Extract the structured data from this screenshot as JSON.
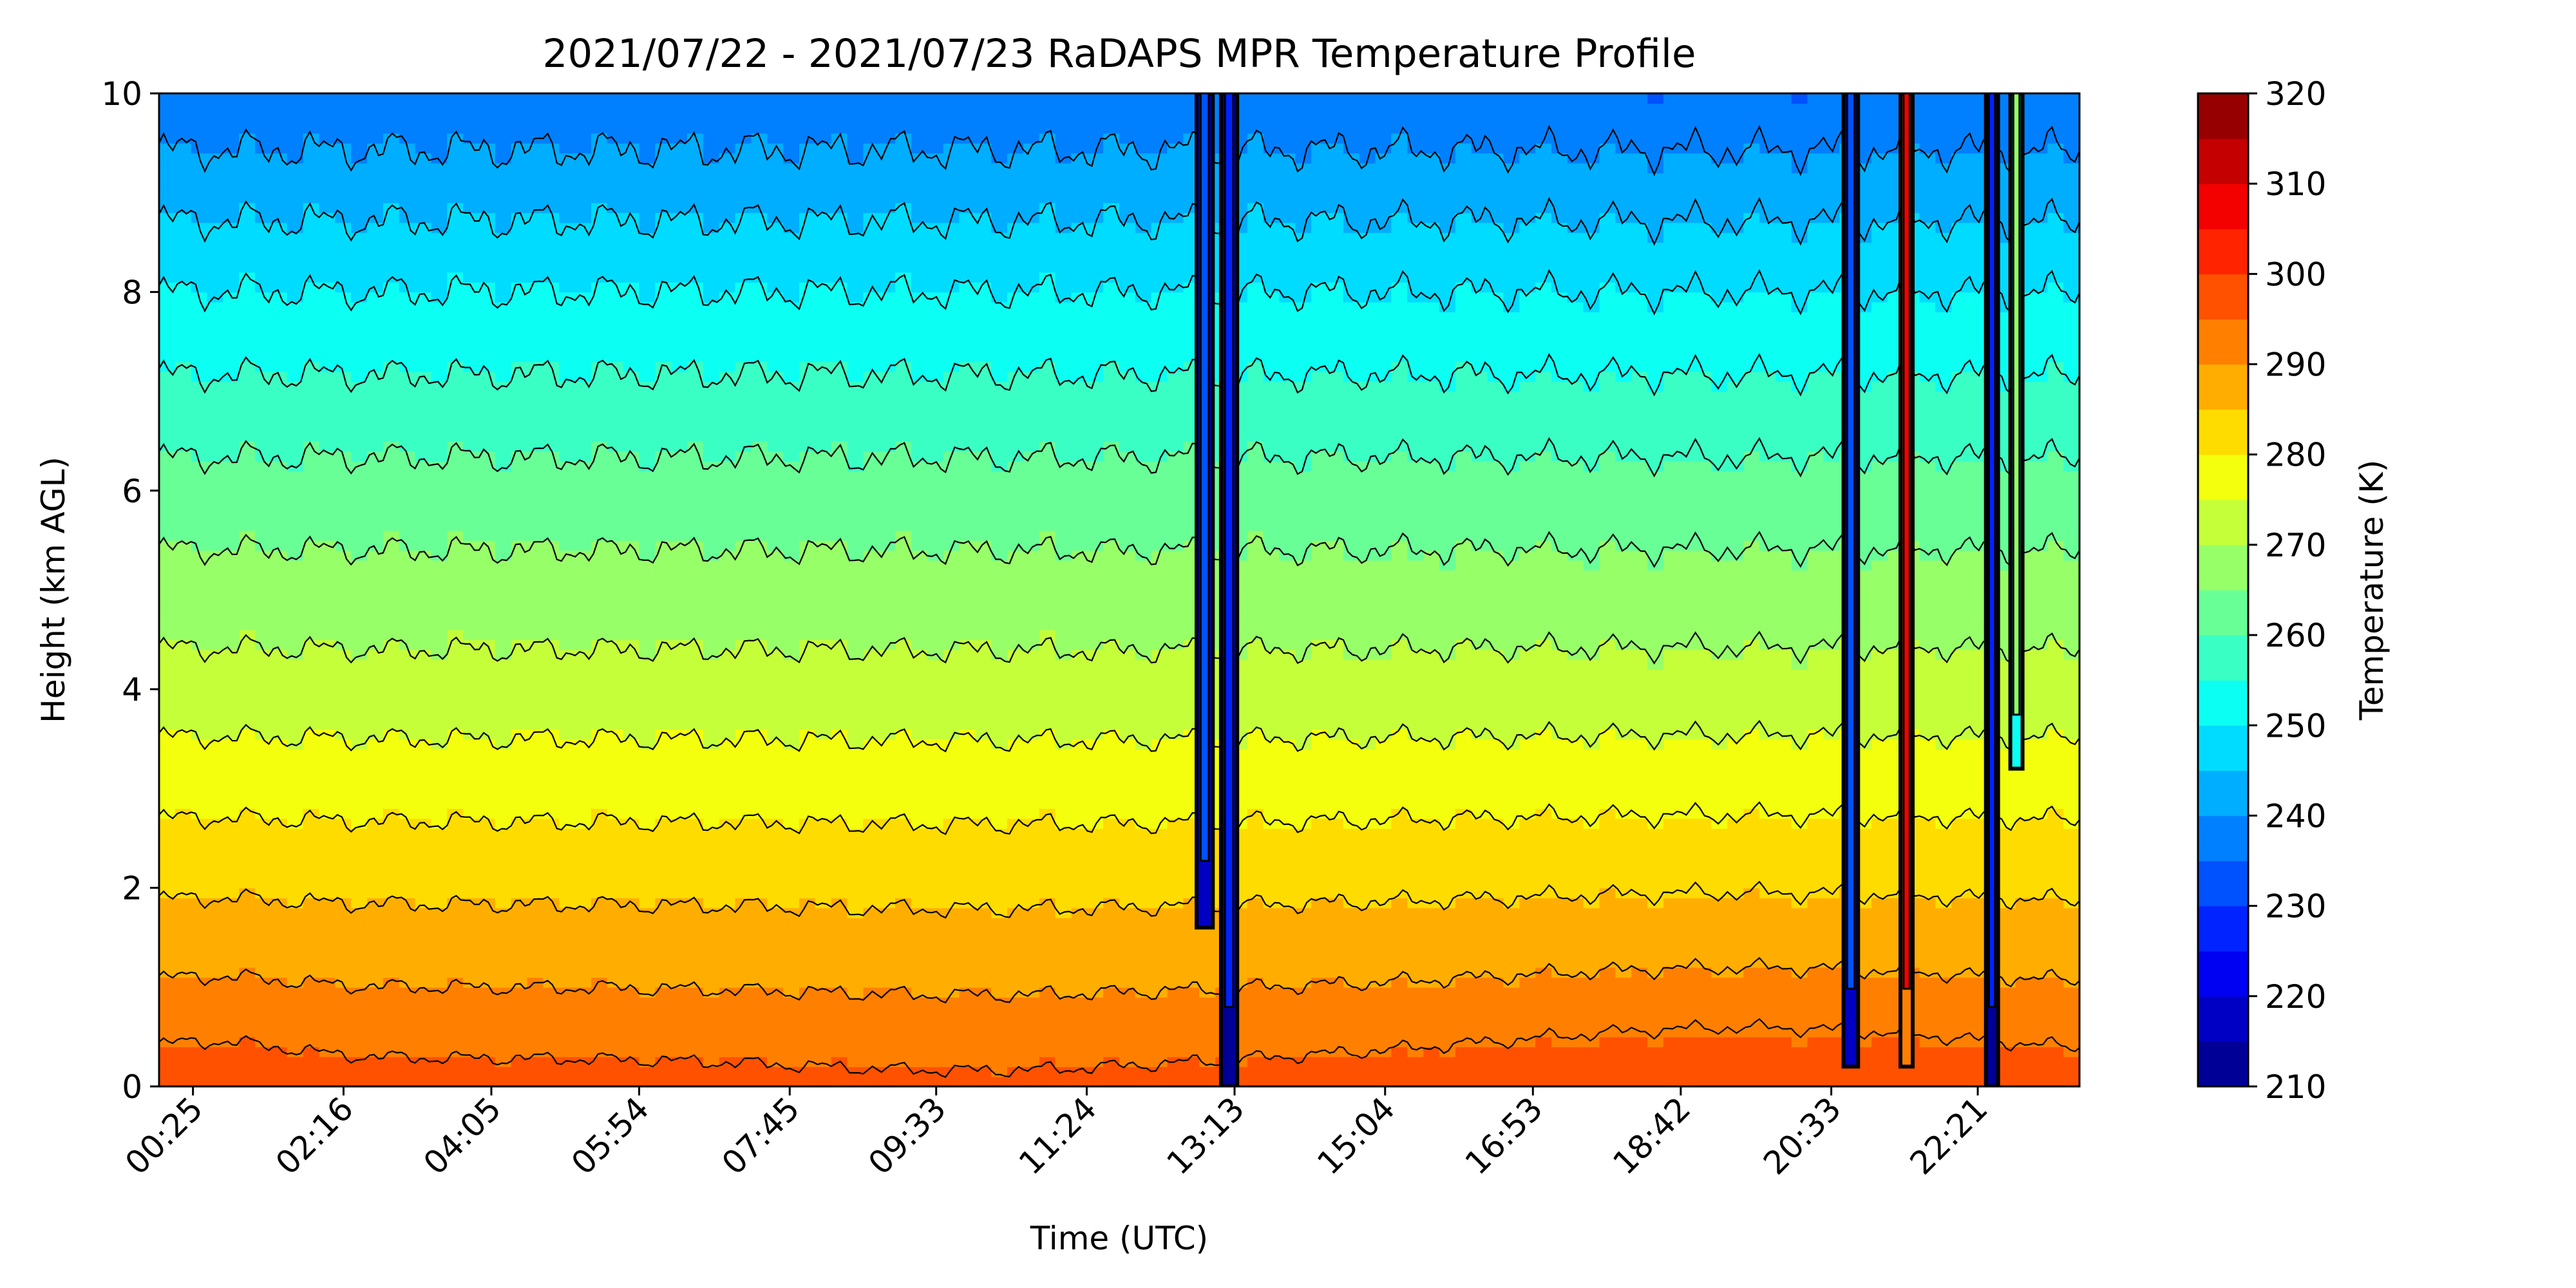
{
  "chart_data": {
    "type": "heatmap",
    "title": "2021/07/22 - 2021/07/23 RaDAPS MPR Temperature Profile",
    "xlabel": "Time (UTC)",
    "ylabel": "Height (km AGL)",
    "x_tick_labels": [
      "00:25",
      "02:16",
      "04:05",
      "05:54",
      "07:45",
      "09:33",
      "11:24",
      "13:13",
      "15:04",
      "16:53",
      "18:42",
      "20:33",
      "22:21"
    ],
    "x_tick_hours": [
      0.4167,
      2.2667,
      4.0833,
      5.9,
      7.75,
      9.55,
      11.4,
      13.2167,
      15.0667,
      16.8833,
      18.7,
      20.55,
      22.35
    ],
    "x_range_hours": [
      0.0,
      23.6
    ],
    "y_ticks": [
      0,
      2,
      4,
      6,
      8,
      10
    ],
    "ylim": [
      0,
      10
    ],
    "colorbar": {
      "label": "Temperature (K)",
      "min": 210,
      "max": 320,
      "step": 5,
      "tick_values": [
        210,
        220,
        230,
        240,
        250,
        260,
        270,
        280,
        290,
        300,
        310,
        320
      ],
      "colormap": "jet"
    },
    "contour_interval_K": 5,
    "temperature_profile": {
      "heights_km": [
        0,
        1,
        2,
        3,
        4,
        5,
        6,
        7,
        8,
        9,
        10
      ],
      "temperatures_K": [
        297,
        290,
        284,
        278,
        272,
        267,
        262,
        256,
        250,
        243,
        236
      ]
    },
    "data_dropouts_hours": [
      {
        "start": 12.75,
        "end": 12.95,
        "low_temp_K": 215,
        "bottom_km": 1.6
      },
      {
        "start": 13.05,
        "end": 13.25,
        "low_temp_K": 213,
        "bottom_km": 0.0
      },
      {
        "start": 20.7,
        "end": 20.88,
        "low_temp_K": 218,
        "bottom_km": 0.2
      },
      {
        "start": 21.4,
        "end": 21.55,
        "low_temp_K": 290,
        "bottom_km": 0.2
      },
      {
        "start": 22.45,
        "end": 22.6,
        "low_temp_K": 214,
        "bottom_km": 0.0
      },
      {
        "start": 22.75,
        "end": 22.9,
        "low_temp_K": 250,
        "bottom_km": 3.2
      }
    ]
  }
}
